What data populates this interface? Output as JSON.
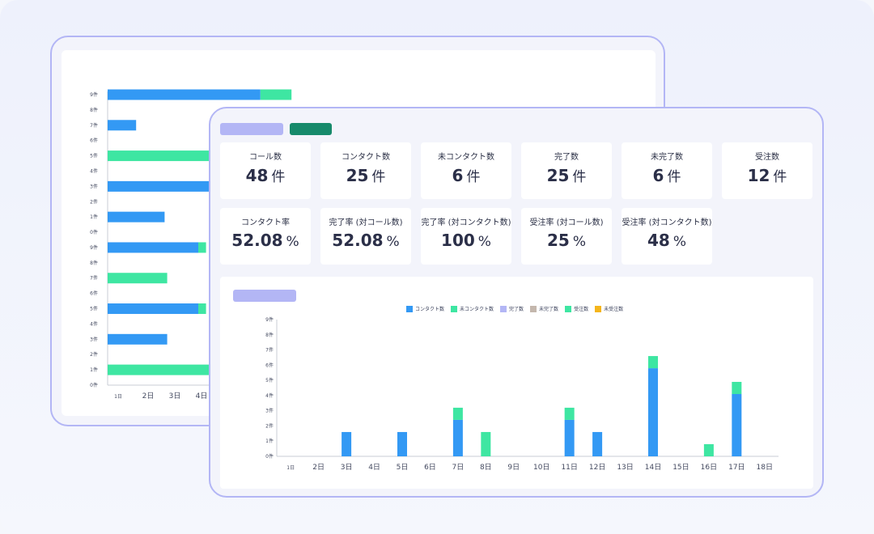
{
  "colors": {
    "contact": "#3399f4",
    "non_contact": "#3ee6a2",
    "completed": "#b3b6f5",
    "incomplete": "#c4b7ad",
    "orders": "#3ee6a2",
    "lost_orders": "#f5b51b",
    "pill_lavender": "#b3b6f5",
    "pill_green": "#178a6b",
    "frame_border": "#b3b6f5"
  },
  "stats": [
    {
      "label": "コール数",
      "value": "48",
      "unit": "件"
    },
    {
      "label": "コンタクト数",
      "value": "25",
      "unit": "件"
    },
    {
      "label": "未コンタクト数",
      "value": "6",
      "unit": "件"
    },
    {
      "label": "完了数",
      "value": "25",
      "unit": "件"
    },
    {
      "label": "未完了数",
      "value": "6",
      "unit": "件"
    },
    {
      "label": "受注数",
      "value": "12",
      "unit": "件"
    },
    {
      "label": "コンタクト率",
      "value": "52.08",
      "unit": "%"
    },
    {
      "label": "完了率 (対コール数)",
      "value": "52.08",
      "unit": "%"
    },
    {
      "label": "完了率 (対コンタクト数)",
      "value": "100",
      "unit": "%"
    },
    {
      "label": "受注率 (対コール数)",
      "value": "25",
      "unit": "%"
    },
    {
      "label": "受注率 (対コンタクト数)",
      "value": "48",
      "unit": "%"
    }
  ],
  "legend": [
    {
      "name": "コンタクト数",
      "color": "#3399f4"
    },
    {
      "name": "未コンタクト数",
      "color": "#3ee6a2"
    },
    {
      "name": "完了数",
      "color": "#b3b6f5"
    },
    {
      "name": "未完了数",
      "color": "#c4b7ad"
    },
    {
      "name": "受注数",
      "color": "#3ee6a2"
    },
    {
      "name": "未受注数",
      "color": "#f5b51b"
    }
  ],
  "chart_data": [
    {
      "type": "bar",
      "orientation": "vertical",
      "stacked": true,
      "categories": [
        "1日",
        "2日",
        "3日",
        "4日",
        "5日",
        "6日",
        "7日",
        "8日",
        "9日",
        "10日",
        "11日",
        "12日",
        "13日",
        "14日",
        "15日",
        "16日",
        "17日",
        "18日"
      ],
      "y_ticks": [
        "0件",
        "1件",
        "2件",
        "3件",
        "4件",
        "5件",
        "6件",
        "7件",
        "8件",
        "9件"
      ],
      "ylim": [
        0,
        9
      ],
      "series": [
        {
          "name": "コンタクト数",
          "values": [
            0,
            0,
            1.6,
            0,
            1.6,
            0,
            2.4,
            0,
            0,
            0,
            2.4,
            1.6,
            0,
            5.8,
            0,
            0,
            4.1,
            0
          ]
        },
        {
          "name": "未コンタクト数",
          "values": [
            0,
            0,
            0,
            0,
            0,
            0,
            0.8,
            1.6,
            0,
            0,
            0.8,
            0,
            0,
            0.8,
            0,
            0.8,
            0.8,
            0
          ]
        }
      ]
    },
    {
      "type": "bar",
      "orientation": "horizontal",
      "stacked": true,
      "x_ticks": [
        "1日",
        "2日",
        "3日",
        "4日"
      ],
      "y_ticks": [
        "0件",
        "1件",
        "2件",
        "3件",
        "4件",
        "5件",
        "6件",
        "7件",
        "8件",
        "9件",
        "0件",
        "1件",
        "2件",
        "3件",
        "4件",
        "5件",
        "6件",
        "7件",
        "8件",
        "9件"
      ],
      "rows": [
        {
          "contact": 0,
          "non_contact": 4.0
        },
        {
          "contact": 2.3,
          "non_contact": 0
        },
        {
          "contact": 3.5,
          "non_contact": 0.3
        },
        {
          "contact": 0,
          "non_contact": 2.3
        },
        {
          "contact": 3.5,
          "non_contact": 0.3
        },
        {
          "contact": 2.2,
          "non_contact": 0
        },
        {
          "contact": 4.0,
          "non_contact": 0
        },
        {
          "contact": 0,
          "non_contact": 4.0
        },
        {
          "contact": 1.1,
          "non_contact": 0
        },
        {
          "contact": 5.9,
          "non_contact": 1.2
        }
      ]
    }
  ]
}
